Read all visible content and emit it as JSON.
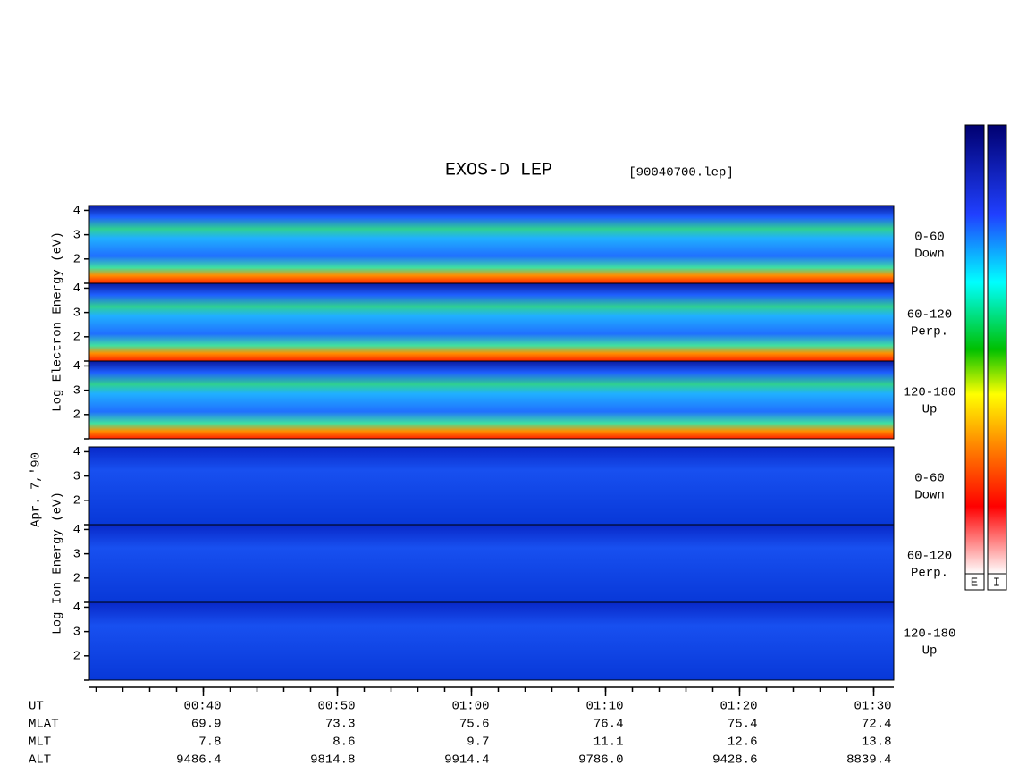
{
  "chart_data": {
    "type": "spectrogram",
    "title": "EXOS-D LEP",
    "file": "[90040700.lep]",
    "date": "Apr. 7,'90",
    "electron_axis_label": "Log Electron Energy (eV)",
    "ion_axis_label": "Log Ion Energy (eV)",
    "ylim": [
      1,
      4.2
    ],
    "yticks": [
      2,
      3,
      4
    ],
    "electron_panels": [
      [
        "0-60",
        "Down"
      ],
      [
        "60-120",
        "Perp."
      ],
      [
        "120-180",
        "Up"
      ]
    ],
    "ion_panels": [
      [
        "0-60",
        "Down"
      ],
      [
        "60-120",
        "Perp."
      ],
      [
        "120-180",
        "Up"
      ]
    ],
    "xlim": [
      31.5,
      91.5
    ],
    "xminor_step": 2,
    "xticks": [
      {
        "value": 40,
        "label": "00:40"
      },
      {
        "value": 50,
        "label": "00:50"
      },
      {
        "value": 60,
        "label": "01:00"
      },
      {
        "value": 70,
        "label": "01:10"
      },
      {
        "value": 80,
        "label": "01:20"
      },
      {
        "value": 90,
        "label": "01:30"
      }
    ],
    "x_row_label": "UT",
    "rows": [
      {
        "name": "MLAT",
        "values": [
          "69.9",
          "73.3",
          "75.6",
          "76.4",
          "75.4",
          "72.4"
        ]
      },
      {
        "name": "MLT",
        "values": [
          "7.8",
          "8.6",
          "9.7",
          "11.1",
          "12.6",
          "13.8"
        ]
      },
      {
        "name": "ALT",
        "values": [
          "9486.4",
          "9814.8",
          "9914.4",
          "9786.0",
          "9428.6",
          "8839.4"
        ]
      }
    ],
    "colorbar_labels": [
      "E",
      "I"
    ]
  }
}
